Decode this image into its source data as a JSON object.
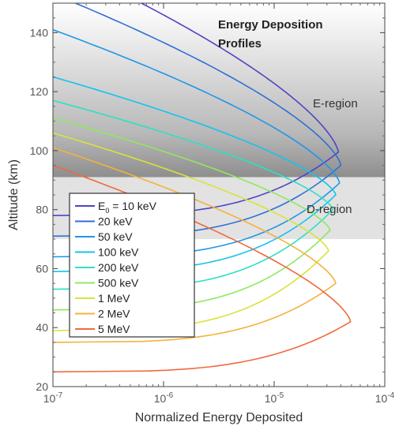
{
  "chart_data": {
    "type": "line",
    "title_lines": [
      "Energy Deposition",
      "Profiles"
    ],
    "xlabel": "Normalized Energy Deposited",
    "ylabel": "Altitude (km)",
    "x_scale": "log",
    "xlim": [
      1e-07,
      0.0001
    ],
    "ylim": [
      20,
      150
    ],
    "x_ticks": [
      {
        "value": 1e-07,
        "base": "10",
        "exp": "-7"
      },
      {
        "value": 1e-06,
        "base": "10",
        "exp": "-6"
      },
      {
        "value": 1e-05,
        "base": "10",
        "exp": "-5"
      },
      {
        "value": 0.0001,
        "base": "10",
        "exp": "-4"
      }
    ],
    "y_ticks": [
      20,
      40,
      60,
      80,
      100,
      120,
      140
    ],
    "regions": [
      {
        "label": "E-region",
        "y_range": [
          91,
          150
        ]
      },
      {
        "label": "D-region",
        "y_range": [
          70,
          91
        ]
      }
    ],
    "legend": {
      "placement": "lower-left"
    },
    "series": [
      {
        "name": "E",
        "sub": "0",
        "suffix": " = 10 keV",
        "color": "#4f44c4",
        "peak_alt": 99.5,
        "peak_val": 3.8e-05,
        "low_alt": 78,
        "top_x": 6.3e-07,
        "top_alt": 150,
        "decay_low": 4.0
      },
      {
        "name": "20 keV",
        "color": "#2f6fd6",
        "peak_alt": 95,
        "peak_val": 4e-05,
        "low_alt": 71,
        "top_x": 1.6e-07,
        "top_alt": 150,
        "decay_low": 4.0
      },
      {
        "name": "50 keV",
        "color": "#1f96e8",
        "peak_alt": 89,
        "peak_val": 3.9e-05,
        "low_alt": 64,
        "top_x": 1e-07,
        "top_alt": 141,
        "decay_low": 4.0
      },
      {
        "name": "100 keV",
        "color": "#14c3ee",
        "peak_alt": 85,
        "peak_val": 3.6e-05,
        "low_alt": 59,
        "top_x": 1e-07,
        "top_alt": 125,
        "decay_low": 4.0
      },
      {
        "name": "200 keV",
        "color": "#2de0c4",
        "peak_alt": 80,
        "peak_val": 3.4e-05,
        "low_alt": 53,
        "top_x": 1e-07,
        "top_alt": 117,
        "decay_low": 4.0
      },
      {
        "name": "500 keV",
        "color": "#8fe860",
        "peak_alt": 73,
        "peak_val": 3.2e-05,
        "low_alt": 46,
        "top_x": 1e-07,
        "top_alt": 111,
        "decay_low": 4.0
      },
      {
        "name": "1 MeV",
        "color": "#d9e33a",
        "peak_alt": 66,
        "peak_val": 3.1e-05,
        "low_alt": 39,
        "top_x": 1e-07,
        "top_alt": 106,
        "decay_low": 4.0
      },
      {
        "name": "2 MeV",
        "color": "#f4b23c",
        "peak_alt": 55,
        "peak_val": 3.6e-05,
        "low_alt": 35,
        "top_x": 1e-07,
        "top_alt": 101,
        "decay_low": 4.0
      },
      {
        "name": "5 MeV",
        "color": "#ef6a3d",
        "peak_alt": 42,
        "peak_val": 4.9e-05,
        "low_alt": 25,
        "top_x": 1e-07,
        "top_alt": 95,
        "decay_low": 4.0
      }
    ]
  }
}
